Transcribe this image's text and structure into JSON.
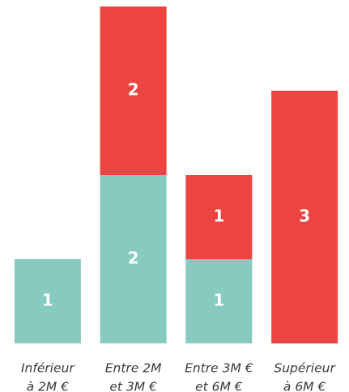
{
  "chart_data": {
    "type": "stacked-bar",
    "categories": [
      [
        "Inférieur",
        "à 2M €"
      ],
      [
        "Entre 2M",
        "et 3M €"
      ],
      [
        "Entre 3M €",
        "et 6M €"
      ],
      [
        "Supérieur",
        "à 6M €"
      ]
    ],
    "series": [
      {
        "color": "#86cac0",
        "values": [
          1,
          2,
          1,
          null
        ]
      },
      {
        "color": "#ec4440",
        "values": [
          null,
          2,
          1,
          3
        ]
      }
    ],
    "ylim": [
      0,
      4
    ]
  }
}
